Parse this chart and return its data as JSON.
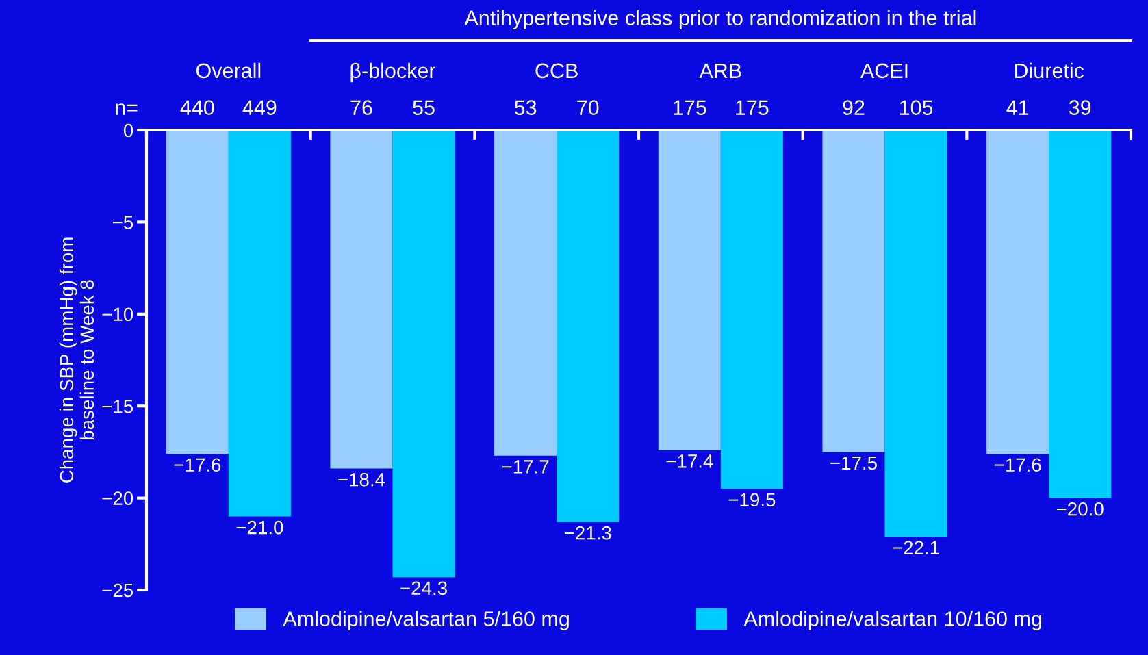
{
  "chart_data": {
    "type": "bar",
    "ylabel": "Change in SBP (mmHg) from\nbaseline to Week 8",
    "categories": [
      "Overall",
      "β-blocker",
      "CCB",
      "ARB",
      "ACEI",
      "Diuretic"
    ],
    "series": [
      {
        "name": "Amlodipine/valsartan 5/160 mg",
        "color": "#99ccff",
        "values": [
          -17.6,
          -18.4,
          -17.7,
          -17.4,
          -17.5,
          -17.6
        ],
        "value_labels": [
          "−17.6",
          "−18.4",
          "−17.7",
          "−17.4",
          "−17.5",
          "−17.6"
        ]
      },
      {
        "name": "Amlodipine/valsartan 10/160 mg",
        "color": "#00ccff",
        "values": [
          -21.0,
          -24.3,
          -21.3,
          -19.5,
          -22.1,
          -20.0
        ],
        "value_labels": [
          "−21.0",
          "−24.3",
          "−21.3",
          "−19.5",
          "−22.1",
          "−20.0"
        ]
      }
    ],
    "ylim": [
      -25,
      0
    ],
    "yticks": [
      0,
      {
        "value": -5,
        "label": "−5"
      },
      {
        "value": -10,
        "label": "−10"
      },
      {
        "value": -15,
        "label": "−15"
      },
      {
        "value": -20,
        "label": "−20"
      },
      {
        "value": -25,
        "label": "−25"
      }
    ],
    "annotations": [
      "Antihypertensive class prior to randomization in the trial",
      "n=",
      "440",
      "449",
      "76",
      "55",
      "53",
      "70",
      "175",
      "175",
      "92",
      "105",
      "41",
      "39"
    ],
    "legend": "bottom",
    "grid": false
  }
}
